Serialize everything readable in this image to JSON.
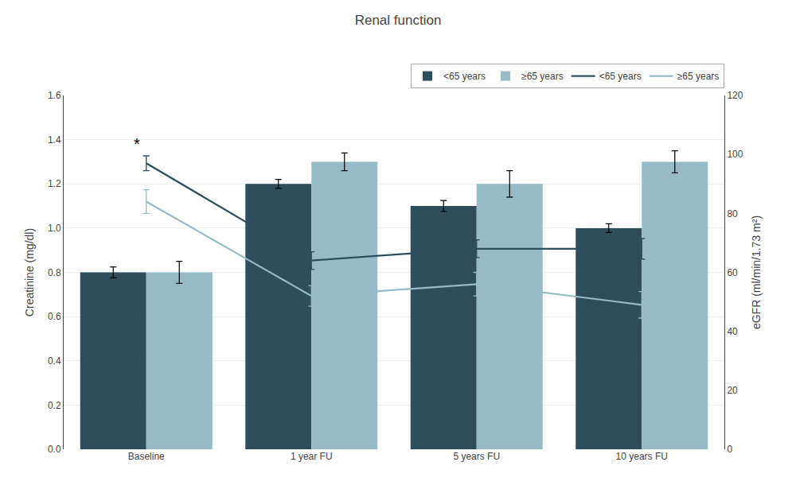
{
  "chart_data": {
    "type": "bar",
    "title": "Renal function",
    "categories": [
      "Baseline",
      "1 year FU",
      "5 years FU",
      "10 years FU"
    ],
    "ylabel": "Creatinine (mg/dl)",
    "y2label": "eGFR (ml/min/1.73 m²)",
    "ylim": [
      0.0,
      1.6
    ],
    "yticks": [
      {
        "value": 0.0,
        "label": "0.0"
      },
      0.2,
      0.4,
      0.6,
      0.8,
      {
        "value": 1.0,
        "label": "1.0"
      },
      1.2,
      1.4,
      1.6
    ],
    "y2lim": [
      0,
      120
    ],
    "y2ticks": [
      0,
      20,
      40,
      60,
      80,
      100,
      120
    ],
    "grid": true,
    "legend": "upper right",
    "series": [
      {
        "name": "<65 years",
        "type": "bar",
        "color": "#2e4e5c",
        "values": [
          0.8,
          1.2,
          1.1,
          1.0
        ],
        "errors": [
          0.025,
          0.02,
          0.025,
          0.02
        ]
      },
      {
        "name": "≥65 years",
        "type": "bar",
        "color": "#96bbc7",
        "values": [
          0.8,
          1.3,
          1.2,
          1.3
        ],
        "errors": [
          0.05,
          0.04,
          0.06,
          0.05
        ]
      },
      {
        "name": "<65 years",
        "type": "line",
        "axis": "y2",
        "color": "#2e4e5c",
        "values": [
          97.0,
          64.0,
          68.0,
          68.0
        ],
        "errors": [
          2.5,
          3.0,
          3.0,
          3.5
        ]
      },
      {
        "name": "≥65 years",
        "type": "line",
        "axis": "y2",
        "color": "#96bbc7",
        "values": [
          84.0,
          52.0,
          56.0,
          49.0
        ],
        "errors": [
          4.0,
          3.5,
          4.0,
          4.5
        ]
      }
    ],
    "annotations": [
      {
        "text": "*",
        "category": "Baseline",
        "y": 100.0,
        "axis": "y2"
      }
    ]
  }
}
